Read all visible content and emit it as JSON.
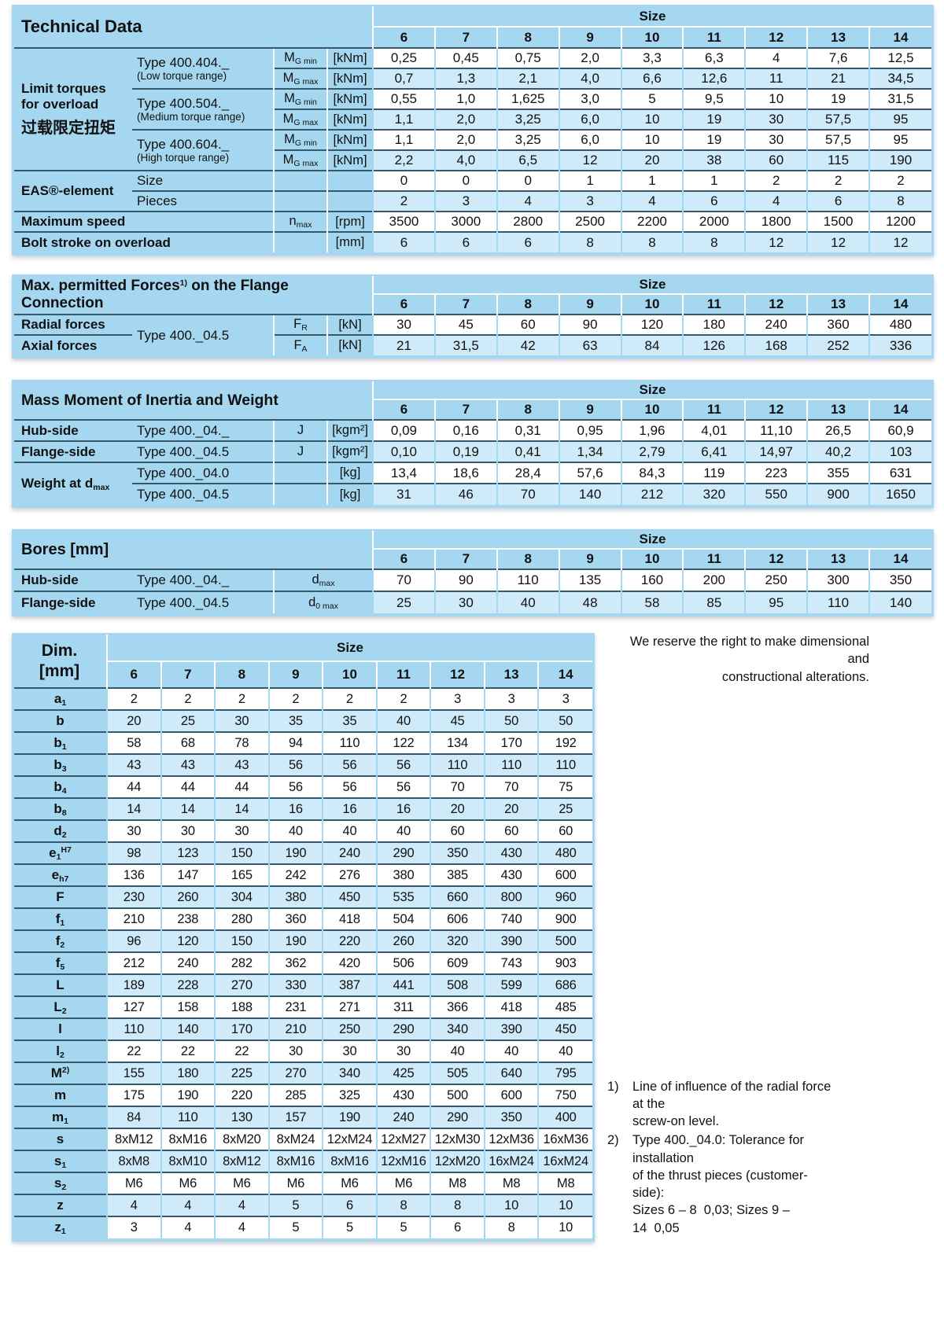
{
  "size_header": {
    "label": "Size",
    "sizes": [
      "6",
      "7",
      "8",
      "9",
      "10",
      "11",
      "12",
      "13",
      "14"
    ]
  },
  "technical": {
    "title": "Technical Data",
    "group": {
      "l1": "Limit torques",
      "l2": "for overload",
      "l3": "过载限定扭矩"
    },
    "types": [
      {
        "name": "Type 400.404._",
        "range": "(Low torque range)"
      },
      {
        "name": "Type 400.504._",
        "range": "(Medium torque range)"
      },
      {
        "name": "Type 400.604._",
        "range": "(High torque range)"
      }
    ],
    "sym_M": "M",
    "sym_min": "G min",
    "sym_max": "G max",
    "unit_kNm": "[kNm]",
    "eas_label": "EAS®-element",
    "eas_size_label": "Size",
    "eas_pieces_label": "Pieces",
    "nmax_label": "Maximum speed",
    "nmax_sym": "n",
    "nmax_sym_sub": "max",
    "nmax_unit": "[rpm]",
    "bolt_label": "Bolt stroke on overload",
    "bolt_unit": "[mm]",
    "rows": {
      "t404_min": [
        "0,25",
        "0,45",
        "0,75",
        "2,0",
        "3,3",
        "6,3",
        "4",
        "7,6",
        "12,5"
      ],
      "t404_max": [
        "0,7",
        "1,3",
        "2,1",
        "4,0",
        "6,6",
        "12,6",
        "11",
        "21",
        "34,5"
      ],
      "t504_min": [
        "0,55",
        "1,0",
        "1,625",
        "3,0",
        "5",
        "9,5",
        "10",
        "19",
        "31,5"
      ],
      "t504_max": [
        "1,1",
        "2,0",
        "3,25",
        "6,0",
        "10",
        "19",
        "30",
        "57,5",
        "95"
      ],
      "t604_min": [
        "1,1",
        "2,0",
        "3,25",
        "6,0",
        "10",
        "19",
        "30",
        "57,5",
        "95"
      ],
      "t604_max": [
        "2,2",
        "4,0",
        "6,5",
        "12",
        "20",
        "38",
        "60",
        "115",
        "190"
      ],
      "eas_size": [
        "0",
        "0",
        "0",
        "1",
        "1",
        "1",
        "2",
        "2",
        "2"
      ],
      "eas_pieces": [
        "2",
        "3",
        "4",
        "3",
        "4",
        "6",
        "4",
        "6",
        "8"
      ],
      "nmax": [
        "3500",
        "3000",
        "2800",
        "2500",
        "2200",
        "2000",
        "1800",
        "1500",
        "1200"
      ],
      "bolt": [
        "6",
        "6",
        "6",
        "8",
        "8",
        "8",
        "12",
        "12",
        "12"
      ]
    }
  },
  "forces": {
    "title": "Max. permitted Forces",
    "title_sup": "1)",
    "title_rest": " on the Flange Connection",
    "type": "Type 400._04.5",
    "radial_label": "Radial forces",
    "axial_label": "Axial forces",
    "sym_F": "F",
    "sub_R": "R",
    "sub_A": "A",
    "unit": "[kN]",
    "radial": [
      "30",
      "45",
      "60",
      "90",
      "120",
      "180",
      "240",
      "360",
      "480"
    ],
    "axial": [
      "21",
      "31,5",
      "42",
      "63",
      "84",
      "126",
      "168",
      "252",
      "336"
    ]
  },
  "inertia": {
    "title": "Mass Moment of Inertia and Weight",
    "hub_label": "Hub-side",
    "flange_label": "Flange-side",
    "weight_label": "Weight at d",
    "weight_label_sub": "max",
    "type_hub": "Type 400._04._",
    "type_flange": "Type 400._04.5",
    "type_w0": "Type 400._04.0",
    "type_w5": "Type 400._04.5",
    "sym_J": "J",
    "unit_kgm": "[kgm²]",
    "unit_kg": "[kg]",
    "hub": [
      "0,09",
      "0,16",
      "0,31",
      "0,95",
      "1,96",
      "4,01",
      "11,10",
      "26,5",
      "60,9"
    ],
    "flange": [
      "0,10",
      "0,19",
      "0,41",
      "1,34",
      "2,79",
      "6,41",
      "14,97",
      "40,2",
      "103"
    ],
    "w0": [
      "13,4",
      "18,6",
      "28,4",
      "57,6",
      "84,3",
      "119",
      "223",
      "355",
      "631"
    ],
    "w5": [
      "31",
      "46",
      "70",
      "140",
      "212",
      "320",
      "550",
      "900",
      "1650"
    ]
  },
  "bores": {
    "title": "Bores [mm]",
    "hub_label": "Hub-side",
    "flange_label": "Flange-side",
    "type_hub": "Type 400._04._",
    "type_flange": "Type 400._04.5",
    "sym_d": "d",
    "sub_max": "max",
    "sub_0max": "0 max",
    "hub": [
      "70",
      "90",
      "110",
      "135",
      "160",
      "200",
      "250",
      "300",
      "350"
    ],
    "flange": [
      "25",
      "30",
      "40",
      "48",
      "58",
      "85",
      "95",
      "110",
      "140"
    ]
  },
  "dim": {
    "title_l1": "Dim.",
    "title_l2": "[mm]",
    "rows": [
      {
        "label": "a",
        "sub": "1",
        "values": [
          "2",
          "2",
          "2",
          "2",
          "2",
          "2",
          "3",
          "3",
          "3"
        ]
      },
      {
        "label": "b",
        "values": [
          "20",
          "25",
          "30",
          "35",
          "35",
          "40",
          "45",
          "50",
          "50"
        ]
      },
      {
        "label": "b",
        "sub": "1",
        "values": [
          "58",
          "68",
          "78",
          "94",
          "110",
          "122",
          "134",
          "170",
          "192"
        ]
      },
      {
        "label": "b",
        "sub": "3",
        "values": [
          "43",
          "43",
          "43",
          "56",
          "56",
          "56",
          "110",
          "110",
          "110"
        ]
      },
      {
        "label": "b",
        "sub": "4",
        "values": [
          "44",
          "44",
          "44",
          "56",
          "56",
          "56",
          "70",
          "70",
          "75"
        ]
      },
      {
        "label": "b",
        "sub": "8",
        "values": [
          "14",
          "14",
          "14",
          "16",
          "16",
          "16",
          "20",
          "20",
          "25"
        ]
      },
      {
        "label": "d",
        "sub": "2",
        "values": [
          "30",
          "30",
          "30",
          "40",
          "40",
          "40",
          "60",
          "60",
          "60"
        ]
      },
      {
        "label": "e",
        "sub": "1",
        "sup": "H7",
        "values": [
          "98",
          "123",
          "150",
          "190",
          "240",
          "290",
          "350",
          "430",
          "480"
        ]
      },
      {
        "label": "e",
        "sub": "h7",
        "values": [
          "136",
          "147",
          "165",
          "242",
          "276",
          "380",
          "385",
          "430",
          "600"
        ]
      },
      {
        "label": "F",
        "values": [
          "230",
          "260",
          "304",
          "380",
          "450",
          "535",
          "660",
          "800",
          "960"
        ]
      },
      {
        "label": "f",
        "sub": "1",
        "values": [
          "210",
          "238",
          "280",
          "360",
          "418",
          "504",
          "606",
          "740",
          "900"
        ]
      },
      {
        "label": "f",
        "sub": "2",
        "values": [
          "96",
          "120",
          "150",
          "190",
          "220",
          "260",
          "320",
          "390",
          "500"
        ]
      },
      {
        "label": "f",
        "sub": "5",
        "values": [
          "212",
          "240",
          "282",
          "362",
          "420",
          "506",
          "609",
          "743",
          "903"
        ]
      },
      {
        "label": "L",
        "values": [
          "189",
          "228",
          "270",
          "330",
          "387",
          "441",
          "508",
          "599",
          "686"
        ]
      },
      {
        "label": "L",
        "sub": "2",
        "values": [
          "127",
          "158",
          "188",
          "231",
          "271",
          "311",
          "366",
          "418",
          "485"
        ]
      },
      {
        "label": "l",
        "values": [
          "110",
          "140",
          "170",
          "210",
          "250",
          "290",
          "340",
          "390",
          "450"
        ]
      },
      {
        "label": "l",
        "sub": "2",
        "values": [
          "22",
          "22",
          "22",
          "30",
          "30",
          "30",
          "40",
          "40",
          "40"
        ]
      },
      {
        "label": "M",
        "sup": "2)",
        "values": [
          "155",
          "180",
          "225",
          "270",
          "340",
          "425",
          "505",
          "640",
          "795"
        ]
      },
      {
        "label": "m",
        "values": [
          "175",
          "190",
          "220",
          "285",
          "325",
          "430",
          "500",
          "600",
          "750"
        ]
      },
      {
        "label": "m",
        "sub": "1",
        "values": [
          "84",
          "110",
          "130",
          "157",
          "190",
          "240",
          "290",
          "350",
          "400"
        ]
      },
      {
        "label": "s",
        "values": [
          "8xM12",
          "8xM16",
          "8xM20",
          "8xM24",
          "12xM24",
          "12xM27",
          "12xM30",
          "12xM36",
          "16xM36"
        ]
      },
      {
        "label": "s",
        "sub": "1",
        "values": [
          "8xM8",
          "8xM10",
          "8xM12",
          "8xM16",
          "8xM16",
          "12xM16",
          "12xM20",
          "16xM24",
          "16xM24"
        ]
      },
      {
        "label": "s",
        "sub": "2",
        "values": [
          "M6",
          "M6",
          "M6",
          "M6",
          "M6",
          "M6",
          "M8",
          "M8",
          "M8"
        ]
      },
      {
        "label": "z",
        "values": [
          "4",
          "4",
          "4",
          "5",
          "6",
          "8",
          "8",
          "10",
          "10"
        ]
      },
      {
        "label": "z",
        "sub": "1",
        "values": [
          "3",
          "4",
          "4",
          "5",
          "5",
          "5",
          "6",
          "8",
          "10"
        ]
      }
    ]
  },
  "notes": {
    "reserve_l1": "We reserve the right to make dimensional and",
    "reserve_l2": "constructional alterations.",
    "fn1_marker": "1)",
    "fn1_l1": "Line of influence of the radial force at the",
    "fn1_l2": "screw-on level.",
    "fn2_marker": "2)",
    "fn2_l1": "Type 400._04.0: Tolerance for installation",
    "fn2_l2": "of the thrust pieces (customer-side):",
    "fn2_l3": "Sizes 6 – 8  0,03; Sizes 9 – 14  0,05"
  }
}
